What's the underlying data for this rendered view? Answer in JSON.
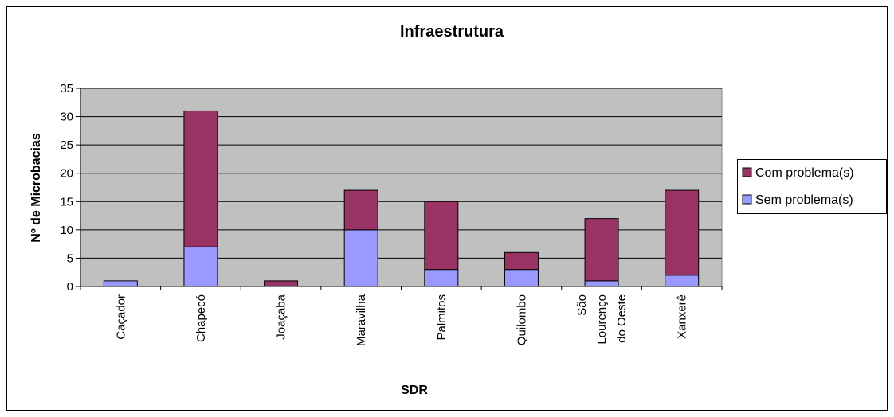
{
  "chart_data": {
    "type": "stacked_bar",
    "title": "Infraestrutura",
    "x_label": "SDR",
    "y_label": "Nº de Microbacias",
    "categories": [
      "Caçador",
      "Chapecó",
      "Joaçaba",
      "Maravilha",
      "Palmitos",
      "Quilombo",
      "São Lourenço do Oeste",
      "Xanxerê"
    ],
    "series": [
      {
        "name": "Com problema(s)",
        "color": "#993366",
        "values": [
          0,
          24,
          1,
          7,
          12,
          3,
          11,
          15
        ]
      },
      {
        "name": "Sem problema(s)",
        "color": "#9999ff",
        "values": [
          1,
          7,
          0,
          10,
          3,
          3,
          1,
          2
        ]
      }
    ],
    "ylim": [
      0,
      35
    ],
    "yticks": [
      0,
      5,
      10,
      15,
      20,
      25,
      30,
      35
    ],
    "grid": true,
    "legend": "right",
    "plot_background": "#c0c0c0"
  }
}
